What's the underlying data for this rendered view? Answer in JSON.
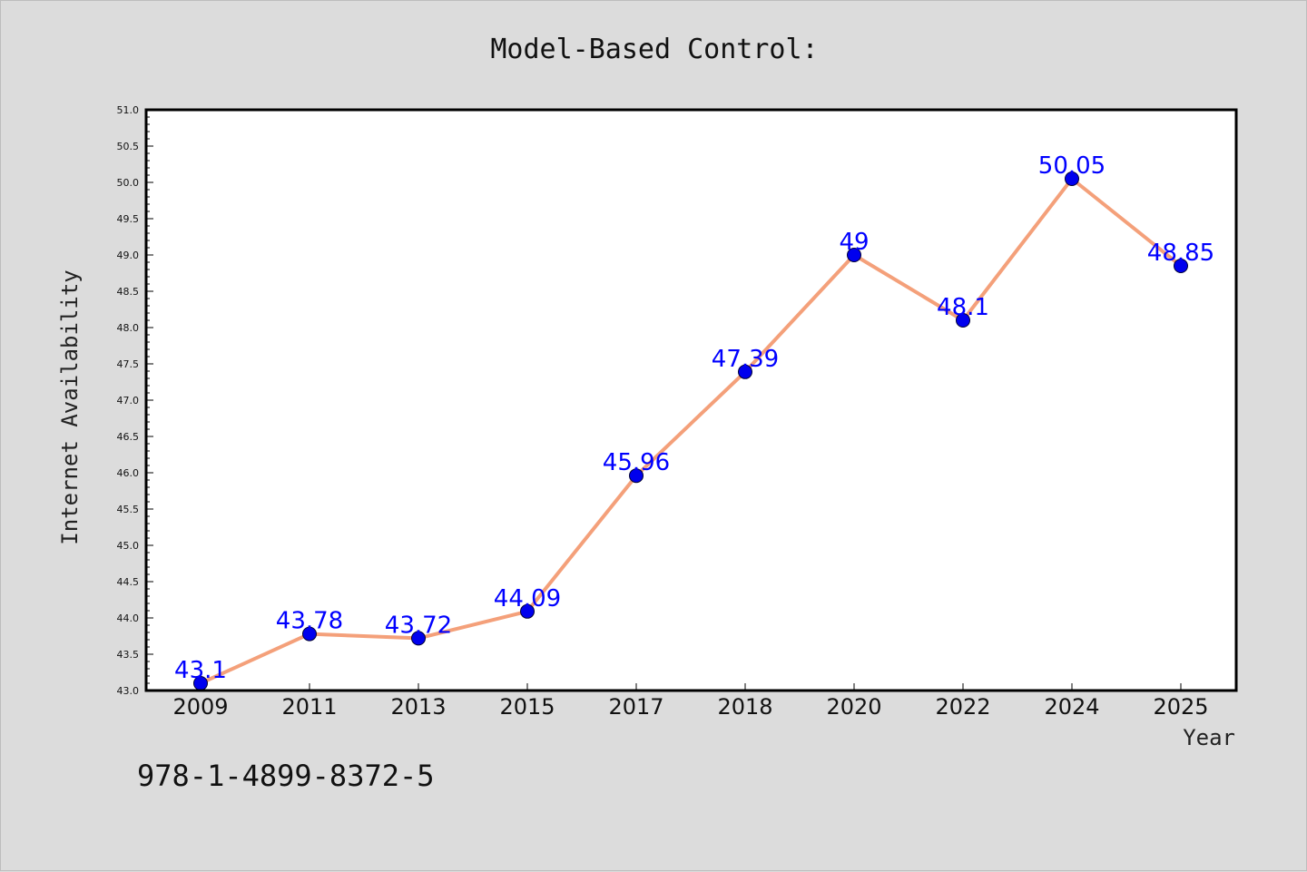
{
  "chart_data": {
    "type": "line",
    "title": "Model-Based Control:",
    "xlabel": "Year",
    "ylabel": "Internet Availability",
    "categories": [
      "2009",
      "2011",
      "2013",
      "2015",
      "2017",
      "2018",
      "2020",
      "2022",
      "2024",
      "2025"
    ],
    "series": [
      {
        "values": [
          43.1,
          43.78,
          43.72,
          44.09,
          45.96,
          47.39,
          49,
          48.1,
          50.05,
          48.85
        ],
        "labels": [
          "43.1",
          "43.78",
          "43.72",
          "44.09",
          "45.96",
          "47.39",
          "49",
          "48.1",
          "50.05",
          "48.85"
        ],
        "line_color": "#f4a07a",
        "marker_color": "#0000ee"
      }
    ],
    "ylim": [
      43.0,
      51.0
    ],
    "yticks": [
      "43.0",
      "43.5",
      "44.0",
      "44.5",
      "45.0",
      "45.5",
      "46.0",
      "46.5",
      "47.0",
      "47.5",
      "48.0",
      "48.5",
      "49.0",
      "49.5",
      "50.0",
      "50.5",
      "51.0"
    ],
    "grid": false,
    "legend": "none"
  },
  "footer": {
    "isbn": "978-1-4899-8372-5"
  },
  "colors": {
    "background": "#dcdcdc",
    "plot_background": "#ffffff",
    "label_color": "#0000ff"
  }
}
